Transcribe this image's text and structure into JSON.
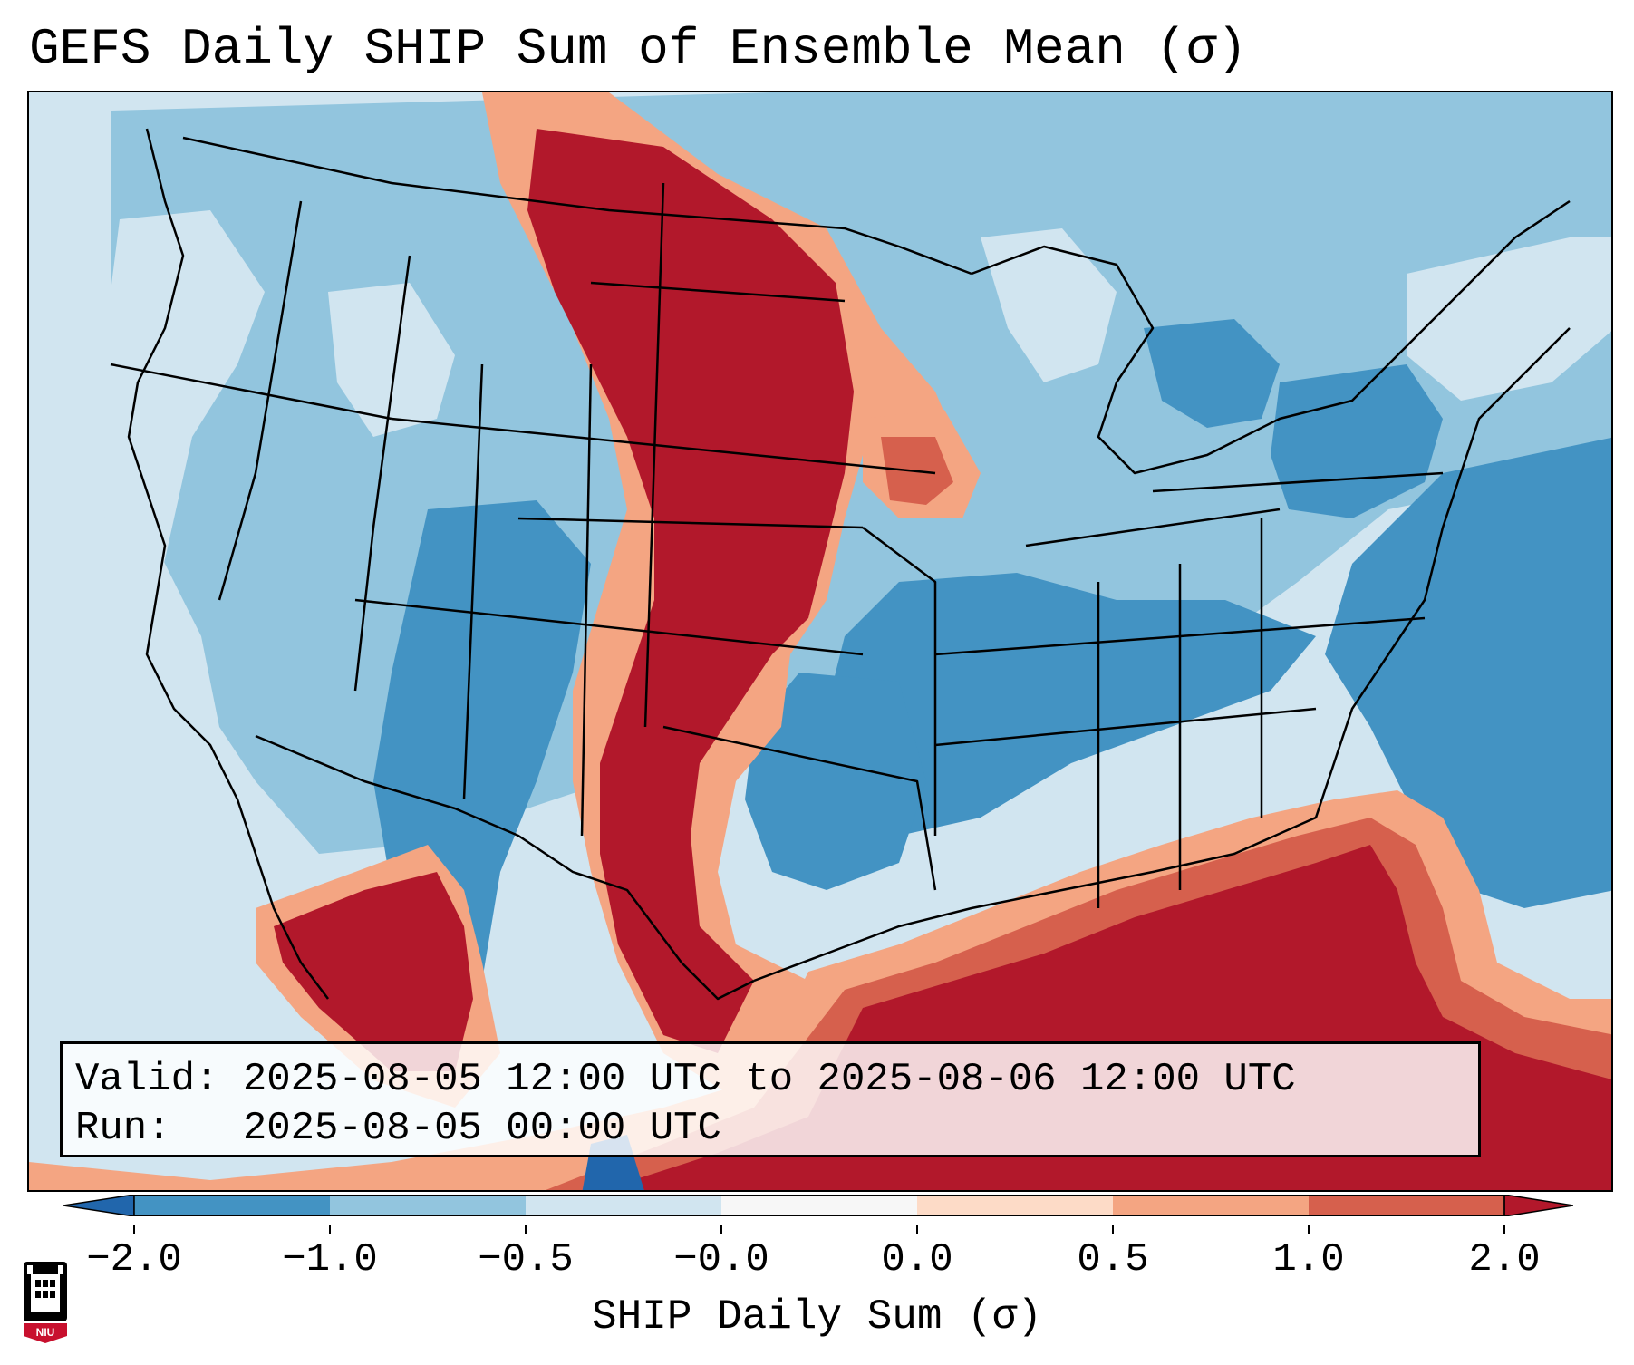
{
  "title": "GEFS Daily SHIP Sum of Ensemble Mean (σ)",
  "info": {
    "valid_label": "Valid:",
    "valid_value": "2025-08-05 12:00 UTC to 2025-08-06 12:00 UTC",
    "run_label": "Run:",
    "run_value": "2025-08-05 00:00 UTC"
  },
  "colorbar": {
    "label": "SHIP Daily Sum (σ)",
    "ticks": [
      "−2.0",
      "−1.0",
      "−0.5",
      "−0.0",
      "0.0",
      "0.5",
      "1.0",
      "2.0"
    ],
    "colors": [
      "#4393c3",
      "#92c5de",
      "#d1e5f0",
      "#f7f7f7",
      "#fddbc7",
      "#f4a582",
      "#d6604d"
    ],
    "extend_low_color": "#2166ac",
    "extend_high_color": "#b2182b"
  },
  "logo": {
    "text": "NIU"
  }
}
